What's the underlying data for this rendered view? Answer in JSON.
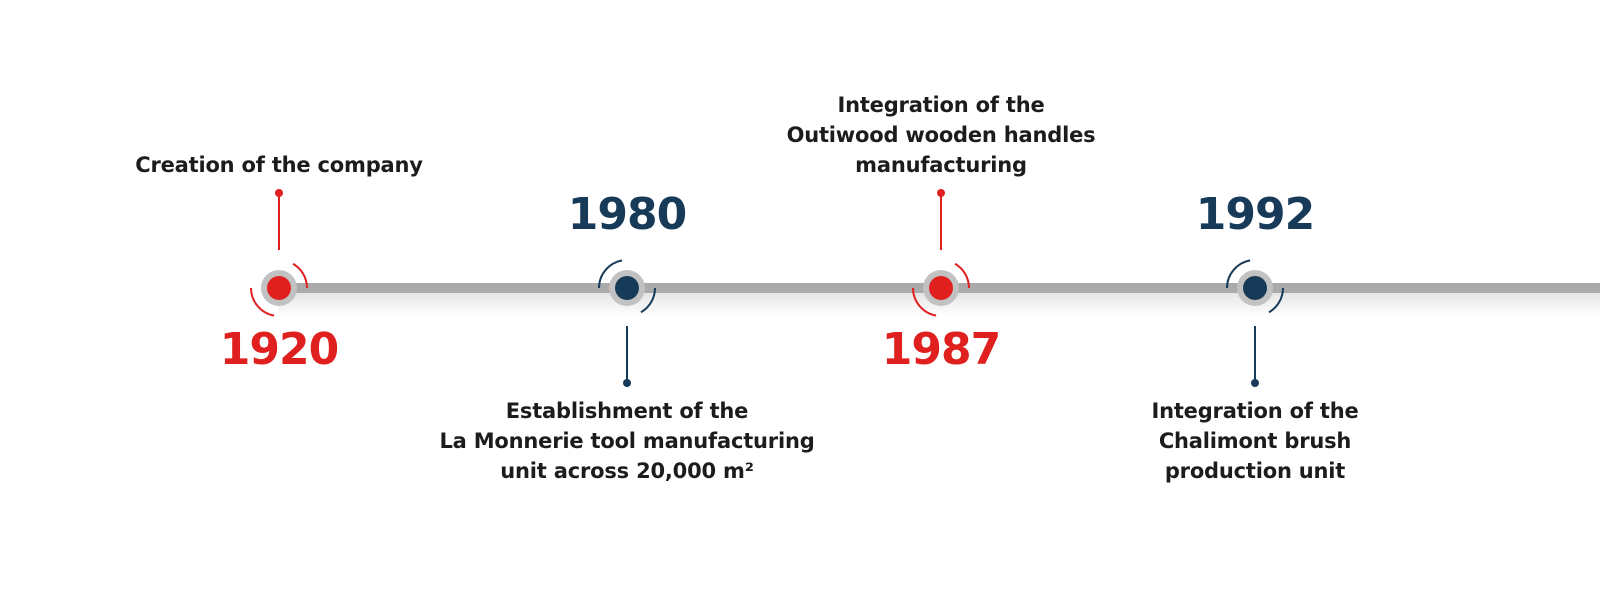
{
  "colors": {
    "red": "#e0201f",
    "navy": "#173a59",
    "track": "#aaaaaa",
    "ring": "#c2c2c2",
    "text": "#1c1c1c"
  },
  "events": [
    {
      "year": "1920",
      "accent": "red",
      "year_position": "below",
      "description_position": "above",
      "description_lines": [
        "Creation of the company"
      ]
    },
    {
      "year": "1980",
      "accent": "navy",
      "year_position": "above",
      "description_position": "below",
      "description_lines": [
        "Establishment of the",
        "La Monnerie tool manufacturing",
        "unit across 20,000 m²"
      ]
    },
    {
      "year": "1987",
      "accent": "red",
      "year_position": "below",
      "description_position": "above",
      "description_lines": [
        "Integration of the",
        "Outiwood wooden handles",
        "manufacturing"
      ]
    },
    {
      "year": "1992",
      "accent": "navy",
      "year_position": "above",
      "description_position": "below",
      "description_lines": [
        "Integration of the",
        "Chalimont brush",
        "production unit"
      ]
    }
  ]
}
